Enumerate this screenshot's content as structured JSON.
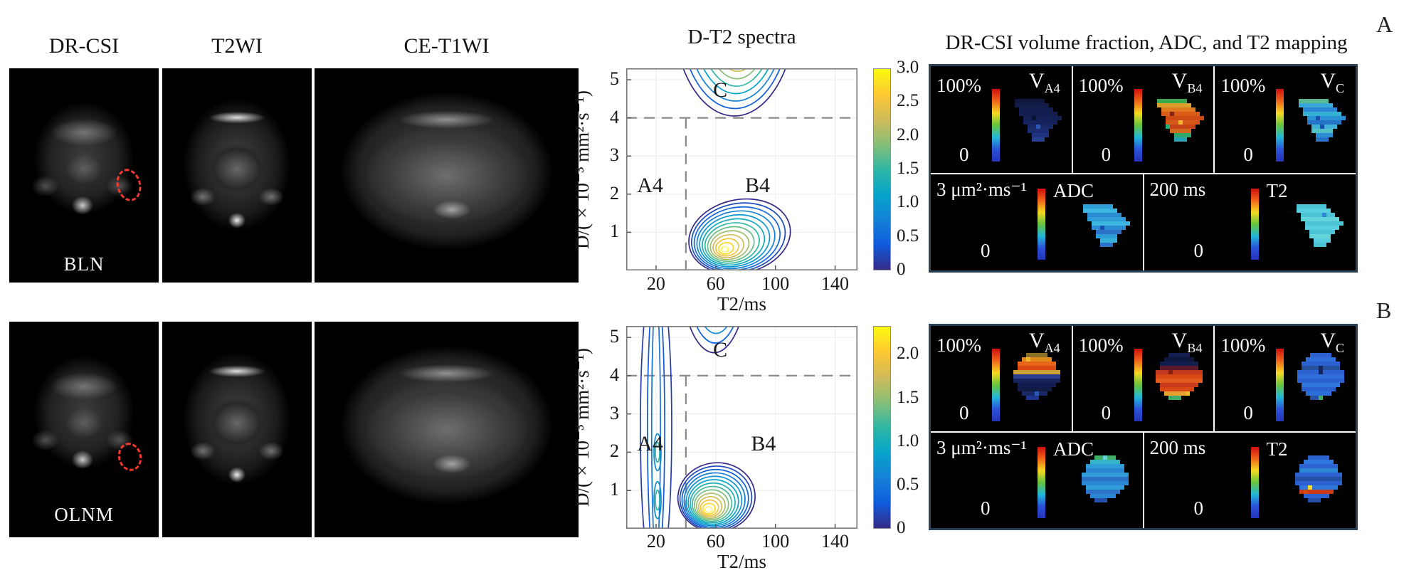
{
  "figure_labels": {
    "row_a": "A",
    "row_b": "B"
  },
  "columns": {
    "mri_titles": [
      "DR-CSI",
      "T2WI",
      "CE-T1WI"
    ],
    "spectra_title": "D-T2 spectra",
    "mapping_title": "DR-CSI volume fraction, ADC, and T2 mapping"
  },
  "colors": {
    "panel_border": "#2c4257",
    "panel_bg": "#000000",
    "dashed_line": "#8a8a8a",
    "grid": "#ececec",
    "axis_box": "#7a7a7a",
    "roi_marker": "#f5392e",
    "parula": [
      "#352a87",
      "#0f5cdd",
      "#1481d6",
      "#06a4ca",
      "#2eb7a4",
      "#87bf77",
      "#d1bb59",
      "#fec832",
      "#f9fb0e"
    ],
    "mapping_bar_gradient": [
      "#cf0e0e",
      "#f0661a",
      "#f5d922",
      "#66c43c",
      "#22b8d8",
      "#2a52d8",
      "#2433b8"
    ]
  },
  "rows": [
    {
      "letter": "A",
      "case_label": "BLN",
      "mapping": {
        "volume_panels": [
          {
            "max": "100%",
            "min": "0",
            "label_main": "V",
            "label_sub": "A4",
            "blob": {
              "shape": "triangle",
              "row_colors": [
                "#10173d",
                "#121a46",
                "#141d50",
                "#141d50",
                "#152055",
                "#16225c",
                "#182765",
                "#1b2d72",
                "#1e347f",
                "#24408f"
              ],
              "speckles": [
                [
                  6,
                  6,
                  "#2b57b4"
                ],
                [
                  4,
                  5,
                  "#0c1130"
                ]
              ]
            }
          },
          {
            "max": "100%",
            "min": "0",
            "label_main": "V",
            "label_sub": "B4",
            "blob": {
              "shape": "triangle",
              "row_colors": [
                "#3aa84e",
                "#d9a02a",
                "#e07a1e",
                "#d85c18",
                "#cf4a14",
                "#d4581a",
                "#c64418",
                "#cf6a1e",
                "#2fa86e",
                "#28a0b4"
              ],
              "speckles": [
                [
                  3,
                  4,
                  "#8a1f10"
                ],
                [
                  5,
                  6,
                  "#f0b62e"
                ],
                [
                  6,
                  3,
                  "#22b078"
                ]
              ]
            }
          },
          {
            "max": "100%",
            "min": "0",
            "label_main": "V",
            "label_sub": "C",
            "blob": {
              "shape": "triangle",
              "row_colors": [
                "#58b890",
                "#37a8d8",
                "#2b86d8",
                "#33b2d4",
                "#2b92d8",
                "#2576c8",
                "#3fb2d8",
                "#52c2c6",
                "#2b8ed4",
                "#2a72c4"
              ],
              "speckles": [
                [
                  4,
                  5,
                  "#1b4fae"
                ],
                [
                  6,
                  6,
                  "#1b4fae"
                ]
              ]
            }
          }
        ],
        "param_panels": [
          {
            "scale": "3 μm²·ms⁻¹",
            "min": "0",
            "label": "ADC",
            "blob": {
              "shape": "triangle",
              "row_colors": [
                "#2f9ed8",
                "#3bb4e0",
                "#2b8cd4",
                "#2f9ed8",
                "#3bb4e0",
                "#2b8cd4",
                "#2b72c8",
                "#2f9ed8",
                "#38b0dc",
                "#2b72c8"
              ],
              "speckles": [
                [
                  5,
                  5,
                  "#1b4fae"
                ]
              ]
            }
          },
          {
            "scale": "200 ms",
            "min": "0",
            "label": "T2",
            "blob": {
              "shape": "triangle",
              "row_colors": [
                "#4cc4d8",
                "#58cde0",
                "#4cc4d8",
                "#63d4da",
                "#4cc4d8",
                "#58cde0",
                "#4cc4d8",
                "#63d4da",
                "#58cde0",
                "#4cc4d8"
              ],
              "speckles": [
                [
                  2,
                  7,
                  "#2b86d4"
                ]
              ]
            }
          }
        ]
      }
    },
    {
      "letter": "B",
      "case_label": "OLNM",
      "mapping": {
        "volume_panels": [
          {
            "max": "100%",
            "min": "0",
            "label_main": "V",
            "label_sub": "A4",
            "blob": {
              "shape": "round",
              "row_colors": [
                "#8a6f24",
                "#e08a1e",
                "#e8661a",
                "#dc4814",
                "#c8a130",
                "#2a3d8f",
                "#18235e",
                "#141d50",
                "#121a46",
                "#182765",
                "#203590"
              ],
              "speckles": [
                [
                  1,
                  3,
                  "#f0b62e"
                ],
                [
                  9,
                  5,
                  "#2b57b4"
                ]
              ]
            }
          },
          {
            "max": "100%",
            "min": "0",
            "label_main": "V",
            "label_sub": "B4",
            "blob": {
              "shape": "round",
              "row_colors": [
                "#141d50",
                "#10173d",
                "#141d50",
                "#5e1a28",
                "#c43a1e",
                "#d84814",
                "#e05c1e",
                "#c83a18",
                "#d84814",
                "#e8a030",
                "#3fae66"
              ],
              "speckles": [
                [
                  4,
                  3,
                  "#8a1f10"
                ],
                [
                  9,
                  7,
                  "#f0b62e"
                ]
              ]
            }
          },
          {
            "max": "100%",
            "min": "0",
            "label_main": "V",
            "label_sub": "C",
            "blob": {
              "shape": "round",
              "row_colors": [
                "#2b62d0",
                "#2f6ed8",
                "#2b62d0",
                "#24509e",
                "#2b62d0",
                "#2f6ed8",
                "#2b62d0",
                "#2f77dc",
                "#2b62d0",
                "#2b6ed8",
                "#2450a8"
              ],
              "speckles": [
                [
                  3,
                  5,
                  "#16255e"
                ],
                [
                  4,
                  5,
                  "#16255e"
                ],
                [
                  10,
                  5,
                  "#3fae66"
                ]
              ]
            }
          }
        ],
        "param_panels": [
          {
            "scale": "3 μm²·ms⁻¹",
            "min": "0",
            "label": "ADC",
            "blob": {
              "shape": "round",
              "row_colors": [
                "#3fae66",
                "#35b4c8",
                "#2f9ed8",
                "#2b86d4",
                "#2f9ed8",
                "#2b72c8",
                "#2b86d4",
                "#2f9ed8",
                "#2b72c8",
                "#2b86d4",
                "#2450a8"
              ],
              "speckles": [
                [
                  0,
                  5,
                  "#63d4da"
                ]
              ]
            }
          },
          {
            "scale": "200 ms",
            "min": "0",
            "label": "T2",
            "blob": {
              "shape": "round",
              "row_colors": [
                "#2b62d0",
                "#2f77dc",
                "#2b62d0",
                "#2b86d4",
                "#2b62d0",
                "#2450a8",
                "#2b62d0",
                "#2f77dc",
                "#c83a18",
                "#2b62d0",
                "#2450a8"
              ],
              "speckles": [
                [
                  8,
                  2,
                  "#d84814"
                ],
                [
                  7,
                  3,
                  "#f5d922"
                ]
              ]
            }
          }
        ]
      }
    }
  ],
  "chart_data": [
    {
      "type": "contour",
      "title": "D-T2 spectra",
      "case": "BLN",
      "xlabel": "T2/ms",
      "ylabel": "D/(×10⁻³ mm²·s⁻¹)",
      "xlim": [
        0,
        155
      ],
      "ylim": [
        0,
        5.3
      ],
      "xticks": [
        20,
        60,
        100,
        140
      ],
      "yticks": [
        1,
        2,
        3,
        4,
        5
      ],
      "grid": true,
      "dashed_lines": {
        "D": 4,
        "T2": 40
      },
      "region_labels": [
        {
          "text": "A4",
          "T2": 16,
          "D": 2.05
        },
        {
          "text": "B4",
          "T2": 88,
          "D": 2.05
        },
        {
          "text": "C",
          "T2": 63,
          "D": 4.55
        }
      ],
      "colorbar": {
        "max": 3.0,
        "ticks": [
          "3.0",
          "2.5",
          "2.0",
          "1.5",
          "1.0",
          "0.5",
          "0"
        ]
      },
      "peaks": [
        {
          "name": "C",
          "shape": "top",
          "T2": 57,
          "D": 5.15,
          "amplitude": 3.0,
          "extent_T2": [
            33,
            112
          ],
          "extent_D": [
            4.05,
            5.3
          ],
          "rings": 9
        },
        {
          "name": "B4",
          "shape": "blob",
          "T2": 66,
          "D": 0.55,
          "amplitude": 3.0,
          "extent_T2": [
            44,
            108
          ],
          "extent_D": [
            0.0,
            1.78
          ],
          "rings": 13,
          "tilt": -12
        }
      ]
    },
    {
      "type": "contour",
      "title": "D-T2 spectra",
      "case": "OLNM",
      "xlabel": "T2/ms",
      "ylabel": "D/(×10⁻³ mm²·s⁻¹)",
      "xlim": [
        0,
        155
      ],
      "ylim": [
        0,
        5.3
      ],
      "xticks": [
        20,
        60,
        100,
        140
      ],
      "yticks": [
        1,
        2,
        3,
        4,
        5
      ],
      "grid": true,
      "dashed_lines": {
        "D": 4,
        "T2": 40
      },
      "region_labels": [
        {
          "text": "A4",
          "T2": 16,
          "D": 2.05
        },
        {
          "text": "B4",
          "T2": 92,
          "D": 2.05
        },
        {
          "text": "C",
          "T2": 63,
          "D": 4.5
        }
      ],
      "colorbar": {
        "max": 2.33,
        "ticks": [
          "2.0",
          "1.5",
          "1.0",
          "0.5",
          "0"
        ]
      },
      "peaks": [
        {
          "name": "A4",
          "shape": "ridge",
          "T2": 20,
          "D": 0.8,
          "amplitude": 1.0,
          "extent_T2": [
            12,
            33
          ],
          "extent_D": [
            0,
            5.3
          ],
          "sub_peaks": [
            {
              "T2": 21,
              "D": 0.75
            },
            {
              "T2": 21,
              "D": 2.0
            }
          ]
        },
        {
          "name": "C",
          "shape": "top",
          "T2": 55,
          "D": 5.1,
          "amplitude": 1.6,
          "extent_T2": [
            38,
            80
          ],
          "extent_D": [
            4.6,
            5.3
          ],
          "rings": 6
        },
        {
          "name": "B4",
          "shape": "blob",
          "T2": 55,
          "D": 0.5,
          "amplitude": 2.3,
          "extent_T2": [
            37,
            84
          ],
          "extent_D": [
            0.0,
            1.65
          ],
          "rings": 14,
          "tilt": -6
        }
      ]
    }
  ]
}
